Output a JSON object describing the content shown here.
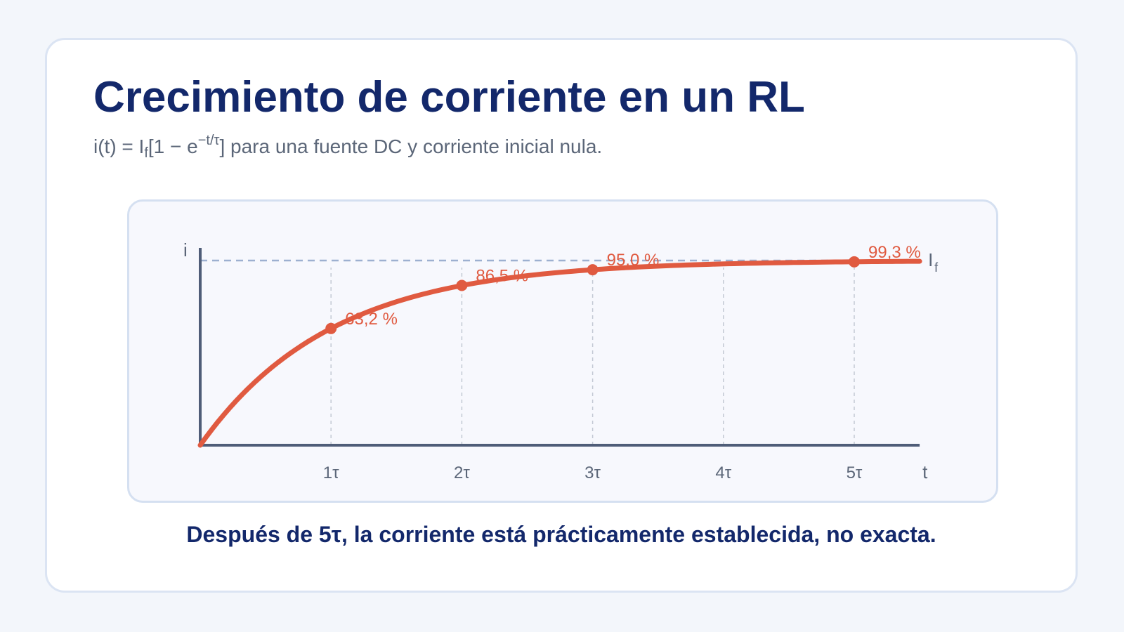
{
  "card": {
    "title": "Crecimiento de corriente en un RL",
    "subtitle": {
      "prefix": "i(t) = I",
      "sub1": "f",
      "mid": "[1 − e",
      "sup": "−t/τ",
      "suffix": "] para una fuente DC y corriente inicial nula."
    },
    "footer": "Después de 5τ, la corriente está prácticamente establecida, no exacta."
  },
  "colors": {
    "curve": "#e05a40",
    "axis": "#4f5d78",
    "asymptote": "#9db0d0",
    "grid": "#c3c9d4",
    "tick_text": "#5b6678"
  },
  "chart_data": {
    "type": "line",
    "xlabel": "t",
    "ylabel": "i",
    "asymptote_label": {
      "main": "I",
      "sub": "f"
    },
    "xlim": [
      0,
      5.5
    ],
    "ylim": [
      0,
      1
    ],
    "x_ticks": [
      1,
      2,
      3,
      4,
      5
    ],
    "x_tick_labels": [
      "1τ",
      "2τ",
      "3τ",
      "4τ",
      "5τ"
    ],
    "asymptote": 1,
    "series": [
      {
        "function": "1 - exp(-x)",
        "x_range": [
          0,
          5.5
        ]
      }
    ],
    "markers": [
      {
        "x": 1,
        "y": 0.632,
        "label": "63,2 %"
      },
      {
        "x": 2,
        "y": 0.865,
        "label": "86,5 %"
      },
      {
        "x": 3,
        "y": 0.95,
        "label": "95,0 %"
      },
      {
        "x": 5,
        "y": 0.993,
        "label": "99,3 %"
      }
    ]
  }
}
